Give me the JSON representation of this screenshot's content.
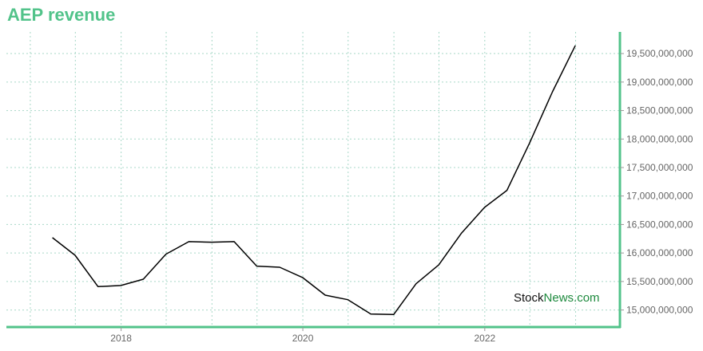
{
  "chart_data": {
    "type": "line",
    "title": "AEP revenue",
    "xlabel": "",
    "ylabel": "",
    "x_ticks": [
      "2018",
      "2020",
      "2022"
    ],
    "y_ticks": [
      15000000000,
      15500000000,
      16000000000,
      16500000000,
      17000000000,
      17500000000,
      18000000000,
      18500000000,
      19000000000,
      19500000000
    ],
    "y_tick_labels": [
      "15,000,000,000",
      "15,500,000,000",
      "16,000,000,000",
      "16,500,000,000",
      "17,000,000,000",
      "17,500,000,000",
      "18,000,000,000",
      "18,500,000,000",
      "19,000,000,000",
      "19,500,000,000"
    ],
    "xlim": [
      "2016-09-27",
      "2023-06-28"
    ],
    "ylim": [
      14700000000,
      19880000000
    ],
    "grid": true,
    "y_axis_position": "right",
    "series": [
      {
        "color": "#000000",
        "points": [
          {
            "x": "2017-03-31",
            "y": 16270000000
          },
          {
            "x": "2017-06-30",
            "y": 15960000000
          },
          {
            "x": "2017-09-30",
            "y": 15410000000
          },
          {
            "x": "2017-12-31",
            "y": 15430000000
          },
          {
            "x": "2018-03-31",
            "y": 15540000000
          },
          {
            "x": "2018-06-30",
            "y": 15980000000
          },
          {
            "x": "2018-09-30",
            "y": 16200000000
          },
          {
            "x": "2018-12-31",
            "y": 16190000000
          },
          {
            "x": "2019-03-31",
            "y": 16200000000
          },
          {
            "x": "2019-06-30",
            "y": 15770000000
          },
          {
            "x": "2019-09-30",
            "y": 15750000000
          },
          {
            "x": "2019-12-31",
            "y": 15570000000
          },
          {
            "x": "2020-03-31",
            "y": 15260000000
          },
          {
            "x": "2020-06-30",
            "y": 15180000000
          },
          {
            "x": "2020-09-30",
            "y": 14930000000
          },
          {
            "x": "2020-12-31",
            "y": 14920000000
          },
          {
            "x": "2021-03-31",
            "y": 15460000000
          },
          {
            "x": "2021-06-30",
            "y": 15790000000
          },
          {
            "x": "2021-09-30",
            "y": 16350000000
          },
          {
            "x": "2021-12-31",
            "y": 16800000000
          },
          {
            "x": "2022-03-31",
            "y": 17100000000
          },
          {
            "x": "2022-06-30",
            "y": 17930000000
          },
          {
            "x": "2022-09-30",
            "y": 18830000000
          },
          {
            "x": "2022-12-31",
            "y": 19640000000
          }
        ]
      }
    ],
    "colors": {
      "title": "#52c38a",
      "axis": "#52c38a",
      "grid": "#a8d8c8",
      "line": "#000000"
    }
  },
  "watermark": {
    "part1": "Stock",
    "part2": "News.com"
  }
}
